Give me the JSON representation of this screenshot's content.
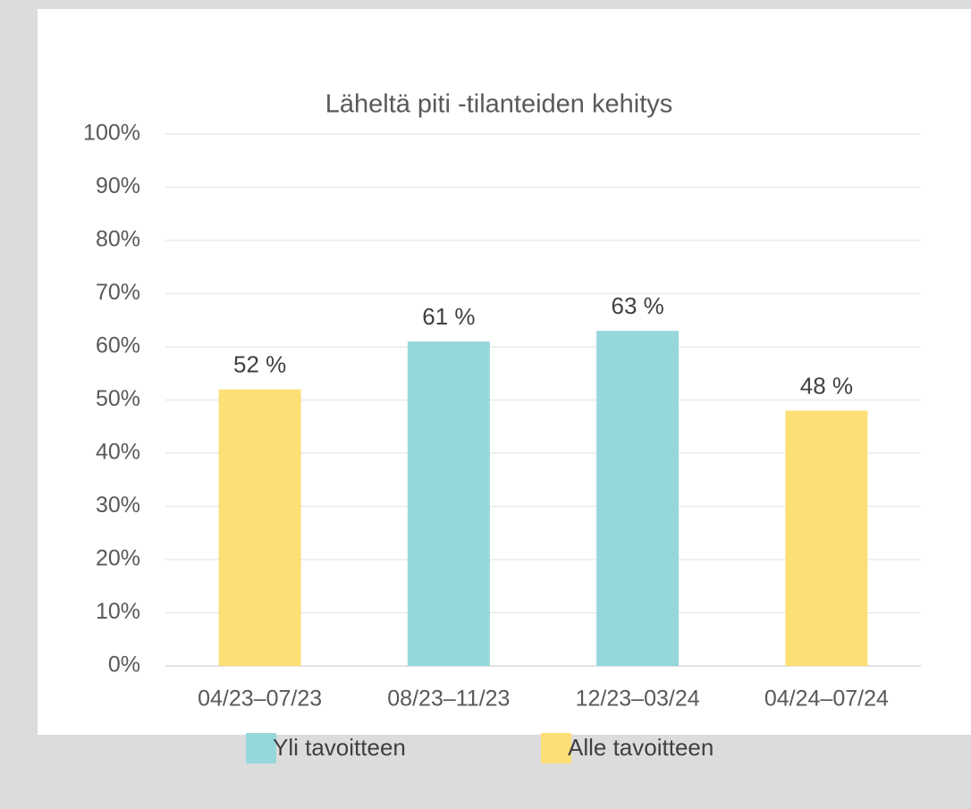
{
  "chart_data": {
    "type": "bar",
    "title": "Läheltä piti -tilanteiden kehitys",
    "categories": [
      "04/23–07/23",
      "08/23–11/23",
      "12/23–03/24",
      "04/24–07/24"
    ],
    "series": [
      {
        "name": "Yli tavoitteen",
        "color": "#96d7dc",
        "values": [
          null,
          61,
          63,
          null
        ],
        "value_labels": [
          null,
          "61 %",
          "63 %",
          null
        ]
      },
      {
        "name": "Alle tavoitteen",
        "color": "#fddf75",
        "values": [
          52,
          null,
          null,
          48
        ],
        "value_labels": [
          "52 %",
          null,
          null,
          "48 %"
        ]
      }
    ],
    "ylim": [
      0,
      100
    ],
    "yticks": [
      {
        "value": 0,
        "label": "0%"
      },
      {
        "value": 10,
        "label": "10%"
      },
      {
        "value": 20,
        "label": "20%"
      },
      {
        "value": 30,
        "label": "30%"
      },
      {
        "value": 40,
        "label": "40%"
      },
      {
        "value": 50,
        "label": "50%"
      },
      {
        "value": 60,
        "label": "60%"
      },
      {
        "value": 70,
        "label": "70%"
      },
      {
        "value": 80,
        "label": "80%"
      },
      {
        "value": 90,
        "label": "90%"
      },
      {
        "value": 100,
        "label": "100%"
      }
    ],
    "grid": true,
    "legend": "bottom"
  }
}
